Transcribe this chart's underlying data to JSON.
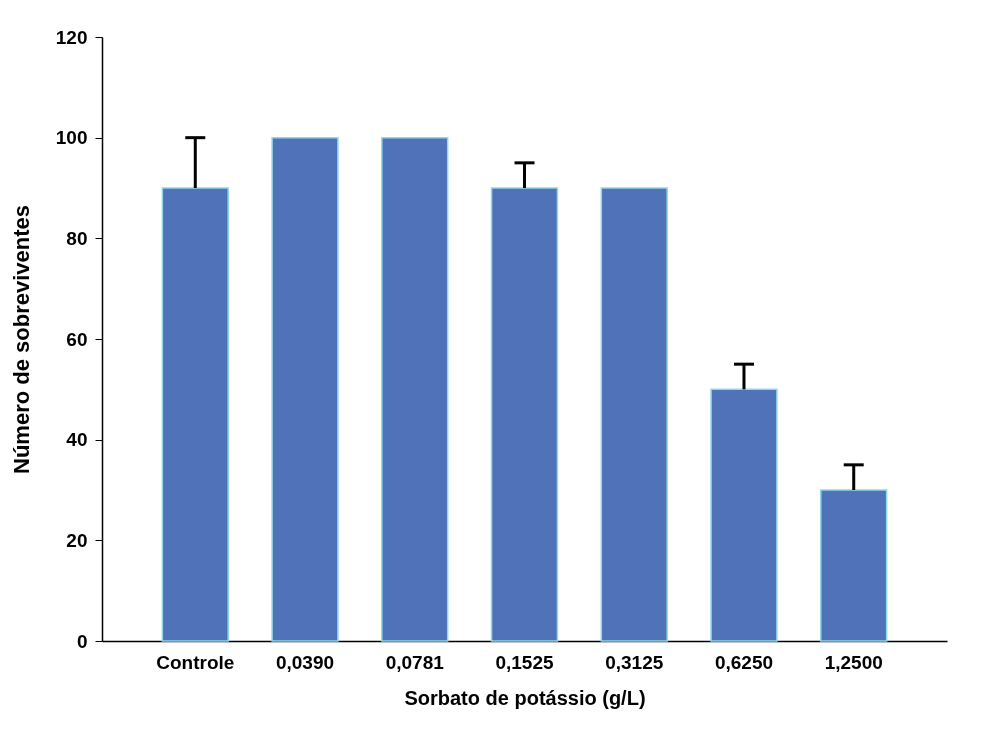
{
  "chart_data": {
    "type": "bar",
    "xlabel": "Sorbato de potássio (g/L)",
    "ylabel": "Número de sobreviventes",
    "categories": [
      "Controle",
      "0,0390",
      "0,0781",
      "0,1525",
      "0,3125",
      "0,6250",
      "1,2500"
    ],
    "values": [
      90,
      100,
      100,
      90,
      90,
      50,
      30
    ],
    "errors": [
      [
        90,
        100
      ],
      null,
      null,
      [
        90,
        95
      ],
      null,
      [
        50,
        55
      ],
      [
        30,
        35
      ]
    ],
    "color": "#4f72b9",
    "ylim": [
      0,
      120
    ],
    "yticks": [
      0,
      20,
      40,
      60,
      80,
      100,
      120
    ],
    "grid": false
  }
}
